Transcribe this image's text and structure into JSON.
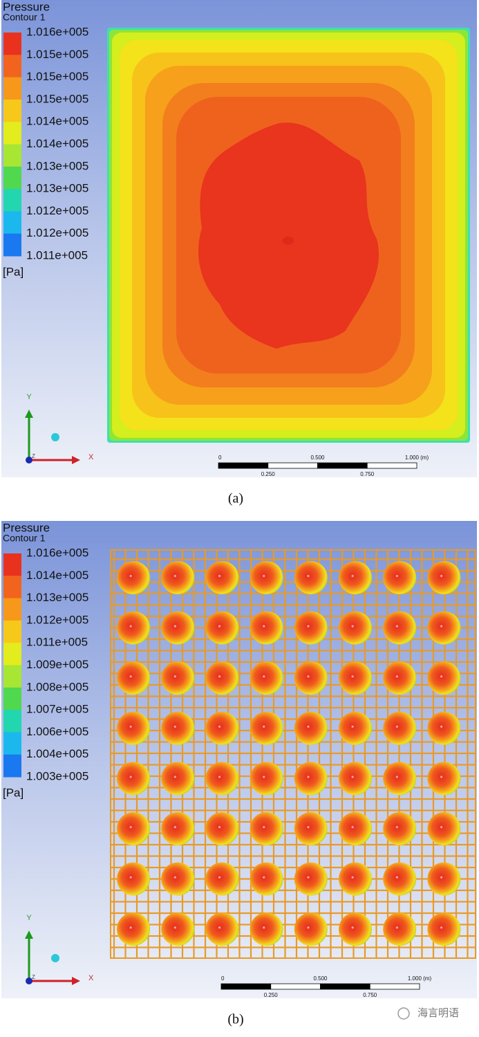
{
  "panels": [
    {
      "title": "Pressure",
      "subtitle": "Contour 1",
      "legend_labels": [
        "1.016e+005",
        "1.015e+005",
        "1.015e+005",
        "1.015e+005",
        "1.014e+005",
        "1.014e+005",
        "1.013e+005",
        "1.013e+005",
        "1.012e+005",
        "1.012e+005",
        "1.011e+005"
      ],
      "unit": "[Pa]",
      "axes": {
        "y": "Y",
        "x": "X",
        "z": "Z"
      },
      "scale": {
        "top": [
          "0",
          "0.500",
          "1.000 (m)"
        ],
        "bottom": [
          "0.250",
          "0.750"
        ]
      },
      "caption": "(a)"
    },
    {
      "title": "Pressure",
      "subtitle": "Contour 1",
      "legend_labels": [
        "1.016e+005",
        "1.014e+005",
        "1.013e+005",
        "1.012e+005",
        "1.011e+005",
        "1.009e+005",
        "1.008e+005",
        "1.007e+005",
        "1.006e+005",
        "1.004e+005",
        "1.003e+005"
      ],
      "unit": "[Pa]",
      "axes": {
        "y": "Y",
        "x": "X",
        "z": "Z"
      },
      "scale": {
        "top": [
          "0",
          "0.500",
          "1.000 (m)"
        ],
        "bottom": [
          "0.250",
          "0.750"
        ]
      },
      "caption": "(b)"
    }
  ],
  "watermark": "海言明语"
}
